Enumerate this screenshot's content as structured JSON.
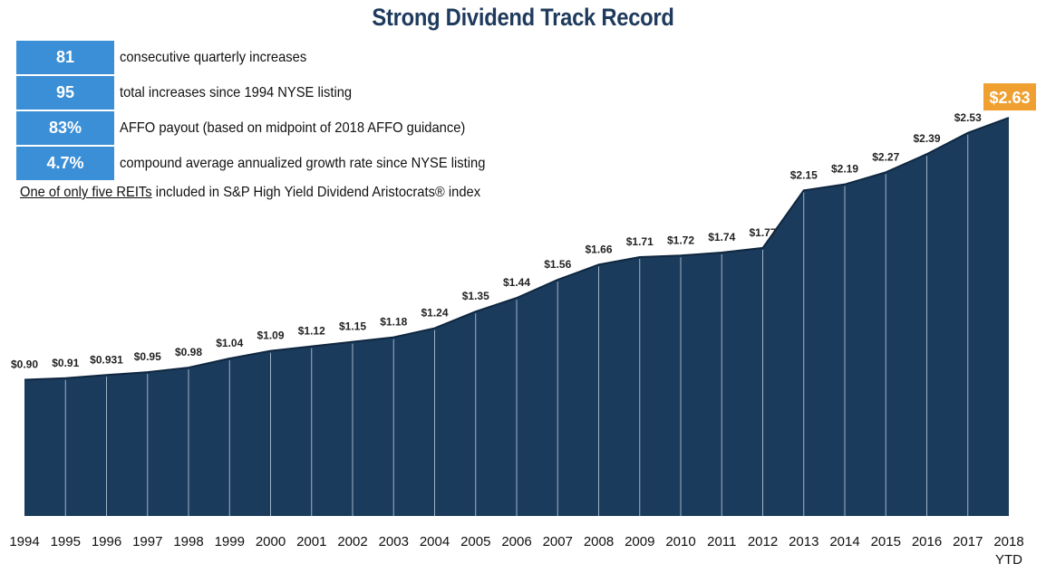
{
  "title": "Strong Dividend Track Record",
  "stats": [
    {
      "value": "81",
      "text": "consecutive quarterly increases"
    },
    {
      "value": "95",
      "text": "total increases since 1994 NYSE listing"
    },
    {
      "value": "83%",
      "text": "AFFO payout (based on midpoint of 2018 AFFO guidance)"
    },
    {
      "value": "4.7%",
      "text": "compound average annualized growth rate since NYSE listing"
    }
  ],
  "note": {
    "underlined": "One of only five REITs",
    "rest": " included in S&P High Yield Dividend Aristocrats® index"
  },
  "colors": {
    "area_fill": "#1b3b5c",
    "separator": "#9fb3c8",
    "stat_box": "#3b8fd6",
    "highlight": "#f0a030",
    "title": "#1e3a5c"
  },
  "chart_data": {
    "type": "area",
    "title": "Strong Dividend Track Record",
    "x": [
      "1994",
      "1995",
      "1996",
      "1997",
      "1998",
      "1999",
      "2000",
      "2001",
      "2002",
      "2003",
      "2004",
      "2005",
      "2006",
      "2007",
      "2008",
      "2009",
      "2010",
      "2011",
      "2012",
      "2013",
      "2014",
      "2015",
      "2016",
      "2017",
      "2018"
    ],
    "x_sublabels": {
      "2018": "YTD"
    },
    "values": [
      0.9,
      0.91,
      0.931,
      0.95,
      0.98,
      1.04,
      1.09,
      1.12,
      1.15,
      1.18,
      1.24,
      1.35,
      1.44,
      1.56,
      1.66,
      1.71,
      1.72,
      1.74,
      1.77,
      2.15,
      2.19,
      2.27,
      2.39,
      2.53,
      2.63
    ],
    "labels": [
      "$0.90",
      "$0.91",
      "$0.931",
      "$0.95",
      "$0.98",
      "$1.04",
      "$1.09",
      "$1.12",
      "$1.15",
      "$1.18",
      "$1.24",
      "$1.35",
      "$1.44",
      "$1.56",
      "$1.66",
      "$1.71",
      "$1.72",
      "$1.74",
      "$1.77",
      "$2.15",
      "$2.19",
      "$2.27",
      "$2.39",
      "$2.53",
      "$2.63"
    ],
    "highlight_index": 24,
    "ylim": [
      0,
      2.75
    ],
    "xlabel": "",
    "ylabel": ""
  }
}
